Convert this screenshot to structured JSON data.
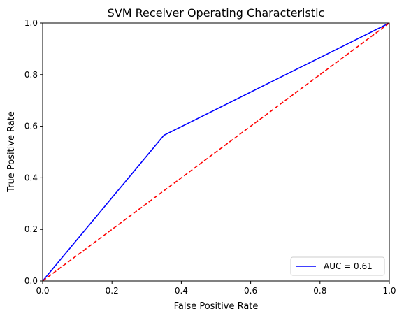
{
  "chart_data": {
    "type": "line",
    "title": "SVM Receiver Operating Characteristic",
    "xlabel": "False Positive Rate",
    "ylabel": "True Positive Rate",
    "xlim": [
      0,
      1
    ],
    "ylim": [
      0,
      1
    ],
    "xticks": [
      "0.0",
      "0.2",
      "0.4",
      "0.6",
      "0.8",
      "1.0"
    ],
    "yticks": [
      "0.0",
      "0.2",
      "0.4",
      "0.6",
      "0.8",
      "1.0"
    ],
    "grid": false,
    "legend_position": "lower-right",
    "series": [
      {
        "name": "AUC = 0.61",
        "color": "#0000ff",
        "line_style": "solid",
        "x": [
          0.0,
          0.35,
          1.0
        ],
        "y": [
          0.0,
          0.565,
          1.0
        ]
      },
      {
        "color": "#ff0000",
        "line_style": "dashed",
        "x": [
          0.0,
          1.0
        ],
        "y": [
          0.0,
          1.0
        ]
      }
    ]
  }
}
